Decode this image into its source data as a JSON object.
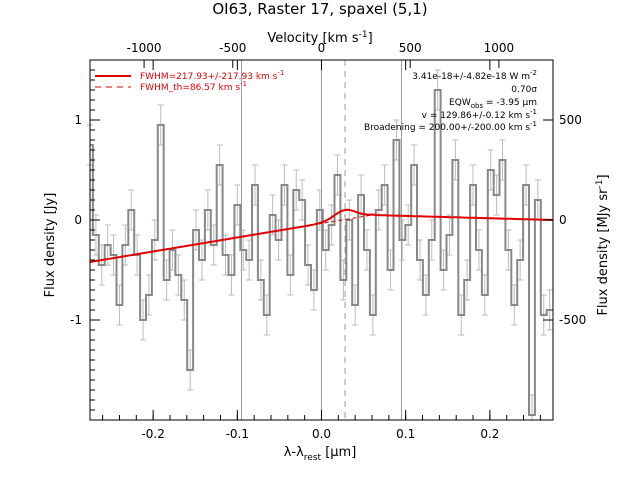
{
  "chart_data": {
    "type": "line",
    "title": "OI63, Raster 17, spaxel (5,1)",
    "xlabel": "λ-λ",
    "xlabel_sub": "rest",
    "xlabel_unit": " [μm]",
    "ylabel_left": "Flux density [Jy]",
    "ylabel_right": "Flux density [MJy sr",
    "ylabel_right_sup": "-1",
    "ylabel_right_end": "]",
    "top_axis_label": "Velocity [km s",
    "top_axis_label_sup": "-1",
    "top_axis_label_end": "]",
    "xlim": [
      -0.275,
      0.275
    ],
    "ylim": [
      -2.0,
      1.6
    ],
    "x_ticks": [
      -0.2,
      -0.1,
      0.0,
      0.1,
      0.2
    ],
    "x_tick_labels": [
      "-0.2",
      "-0.1",
      "0.0",
      "0.1",
      "0.2"
    ],
    "y_ticks": [
      -1,
      0,
      1
    ],
    "y_tick_labels": [
      "-1",
      "0",
      "1"
    ],
    "top_ticks": [
      -1000,
      -500,
      0,
      500,
      1000
    ],
    "top_tick_labels": [
      "-1000",
      "-500",
      "0",
      "500",
      "1000"
    ],
    "right_ticks": [
      -500,
      0,
      500
    ],
    "right_tick_labels": [
      "-500",
      "0",
      "500"
    ],
    "right_scale_per_jy": 500,
    "vertical_lines": [
      -0.095,
      0.0,
      0.095
    ],
    "line_center": 0.028,
    "legend": {
      "position": "top-left",
      "entries": [
        {
          "text": "FWHM=217.93+/-217.93 km s",
          "sup": "-1",
          "style": "solid"
        },
        {
          "text": "FWHM_th=86.57 km s",
          "sup": "-1",
          "style": "dashed"
        }
      ]
    },
    "annotations": {
      "flux": "3.41e-18+/-4.82e-18 W m",
      "flux_sup": "-2",
      "sigma": "0.70σ",
      "eqw": "EQW",
      "eqw_sub": "obs",
      "eqw_value": " = -3.95 μm",
      "velocity": "v = 129.86+/-0.12 km s",
      "velocity_sup": "-1",
      "broadening": "Broadening = 200.00+/-200.00 km s",
      "broadening_sup": "-1"
    },
    "data": {
      "x": [
        -0.275,
        -0.268,
        -0.261,
        -0.254,
        -0.247,
        -0.24,
        -0.233,
        -0.226,
        -0.219,
        -0.212,
        -0.205,
        -0.198,
        -0.191,
        -0.184,
        -0.177,
        -0.17,
        -0.163,
        -0.156,
        -0.149,
        -0.142,
        -0.135,
        -0.128,
        -0.121,
        -0.114,
        -0.107,
        -0.1,
        -0.093,
        -0.086,
        -0.079,
        -0.072,
        -0.065,
        -0.058,
        -0.051,
        -0.044,
        -0.037,
        -0.03,
        -0.023,
        -0.016,
        -0.009,
        -0.002,
        0.005,
        0.012,
        0.019,
        0.026,
        0.033,
        0.04,
        0.047,
        0.054,
        0.061,
        0.068,
        0.075,
        0.082,
        0.089,
        0.096,
        0.103,
        0.11,
        0.117,
        0.124,
        0.131,
        0.138,
        0.145,
        0.152,
        0.159,
        0.166,
        0.173,
        0.18,
        0.187,
        0.194,
        0.201,
        0.208,
        0.215,
        0.222,
        0.229,
        0.236,
        0.243,
        0.25,
        0.257,
        0.264,
        0.271
      ],
      "y": [
        0.75,
        -0.15,
        -0.45,
        -0.25,
        -0.35,
        -0.85,
        -0.25,
        0.1,
        -0.35,
        -1.0,
        -0.75,
        -0.2,
        0.95,
        -0.6,
        -0.3,
        -0.55,
        -0.8,
        -1.5,
        -0.1,
        -0.4,
        0.1,
        -0.25,
        0.55,
        -0.35,
        -0.55,
        0.15,
        -0.3,
        -0.4,
        0.35,
        -0.6,
        -0.95,
        0.05,
        -0.2,
        0.35,
        -0.55,
        0.3,
        0.2,
        -0.45,
        -0.7,
        0.1,
        -0.3,
        -0.05,
        0.45,
        -0.6,
        0.0,
        -0.85,
        0.25,
        -0.3,
        -0.95,
        0.1,
        0.35,
        -0.5,
        0.8,
        -0.2,
        -0.05,
        0.55,
        -0.4,
        -0.75,
        -0.2,
        1.3,
        -0.5,
        -0.15,
        0.6,
        -0.95,
        -0.6,
        0.35,
        -0.3,
        -0.75,
        0.5,
        0.25,
        0.6,
        -0.3,
        -0.85,
        -0.4,
        0.35,
        -1.95,
        0.2,
        -0.95,
        -0.9
      ],
      "err": 0.2
    },
    "fit": {
      "continuum_left": -0.42,
      "continuum_mid": 0.05,
      "continuum_right": 0.0,
      "gauss_amp": 0.095,
      "gauss_sigma": 0.013
    },
    "colors": {
      "data": "#888888",
      "error": "#bbbbbb",
      "fit": "#e00000",
      "vline": "#999999"
    }
  }
}
